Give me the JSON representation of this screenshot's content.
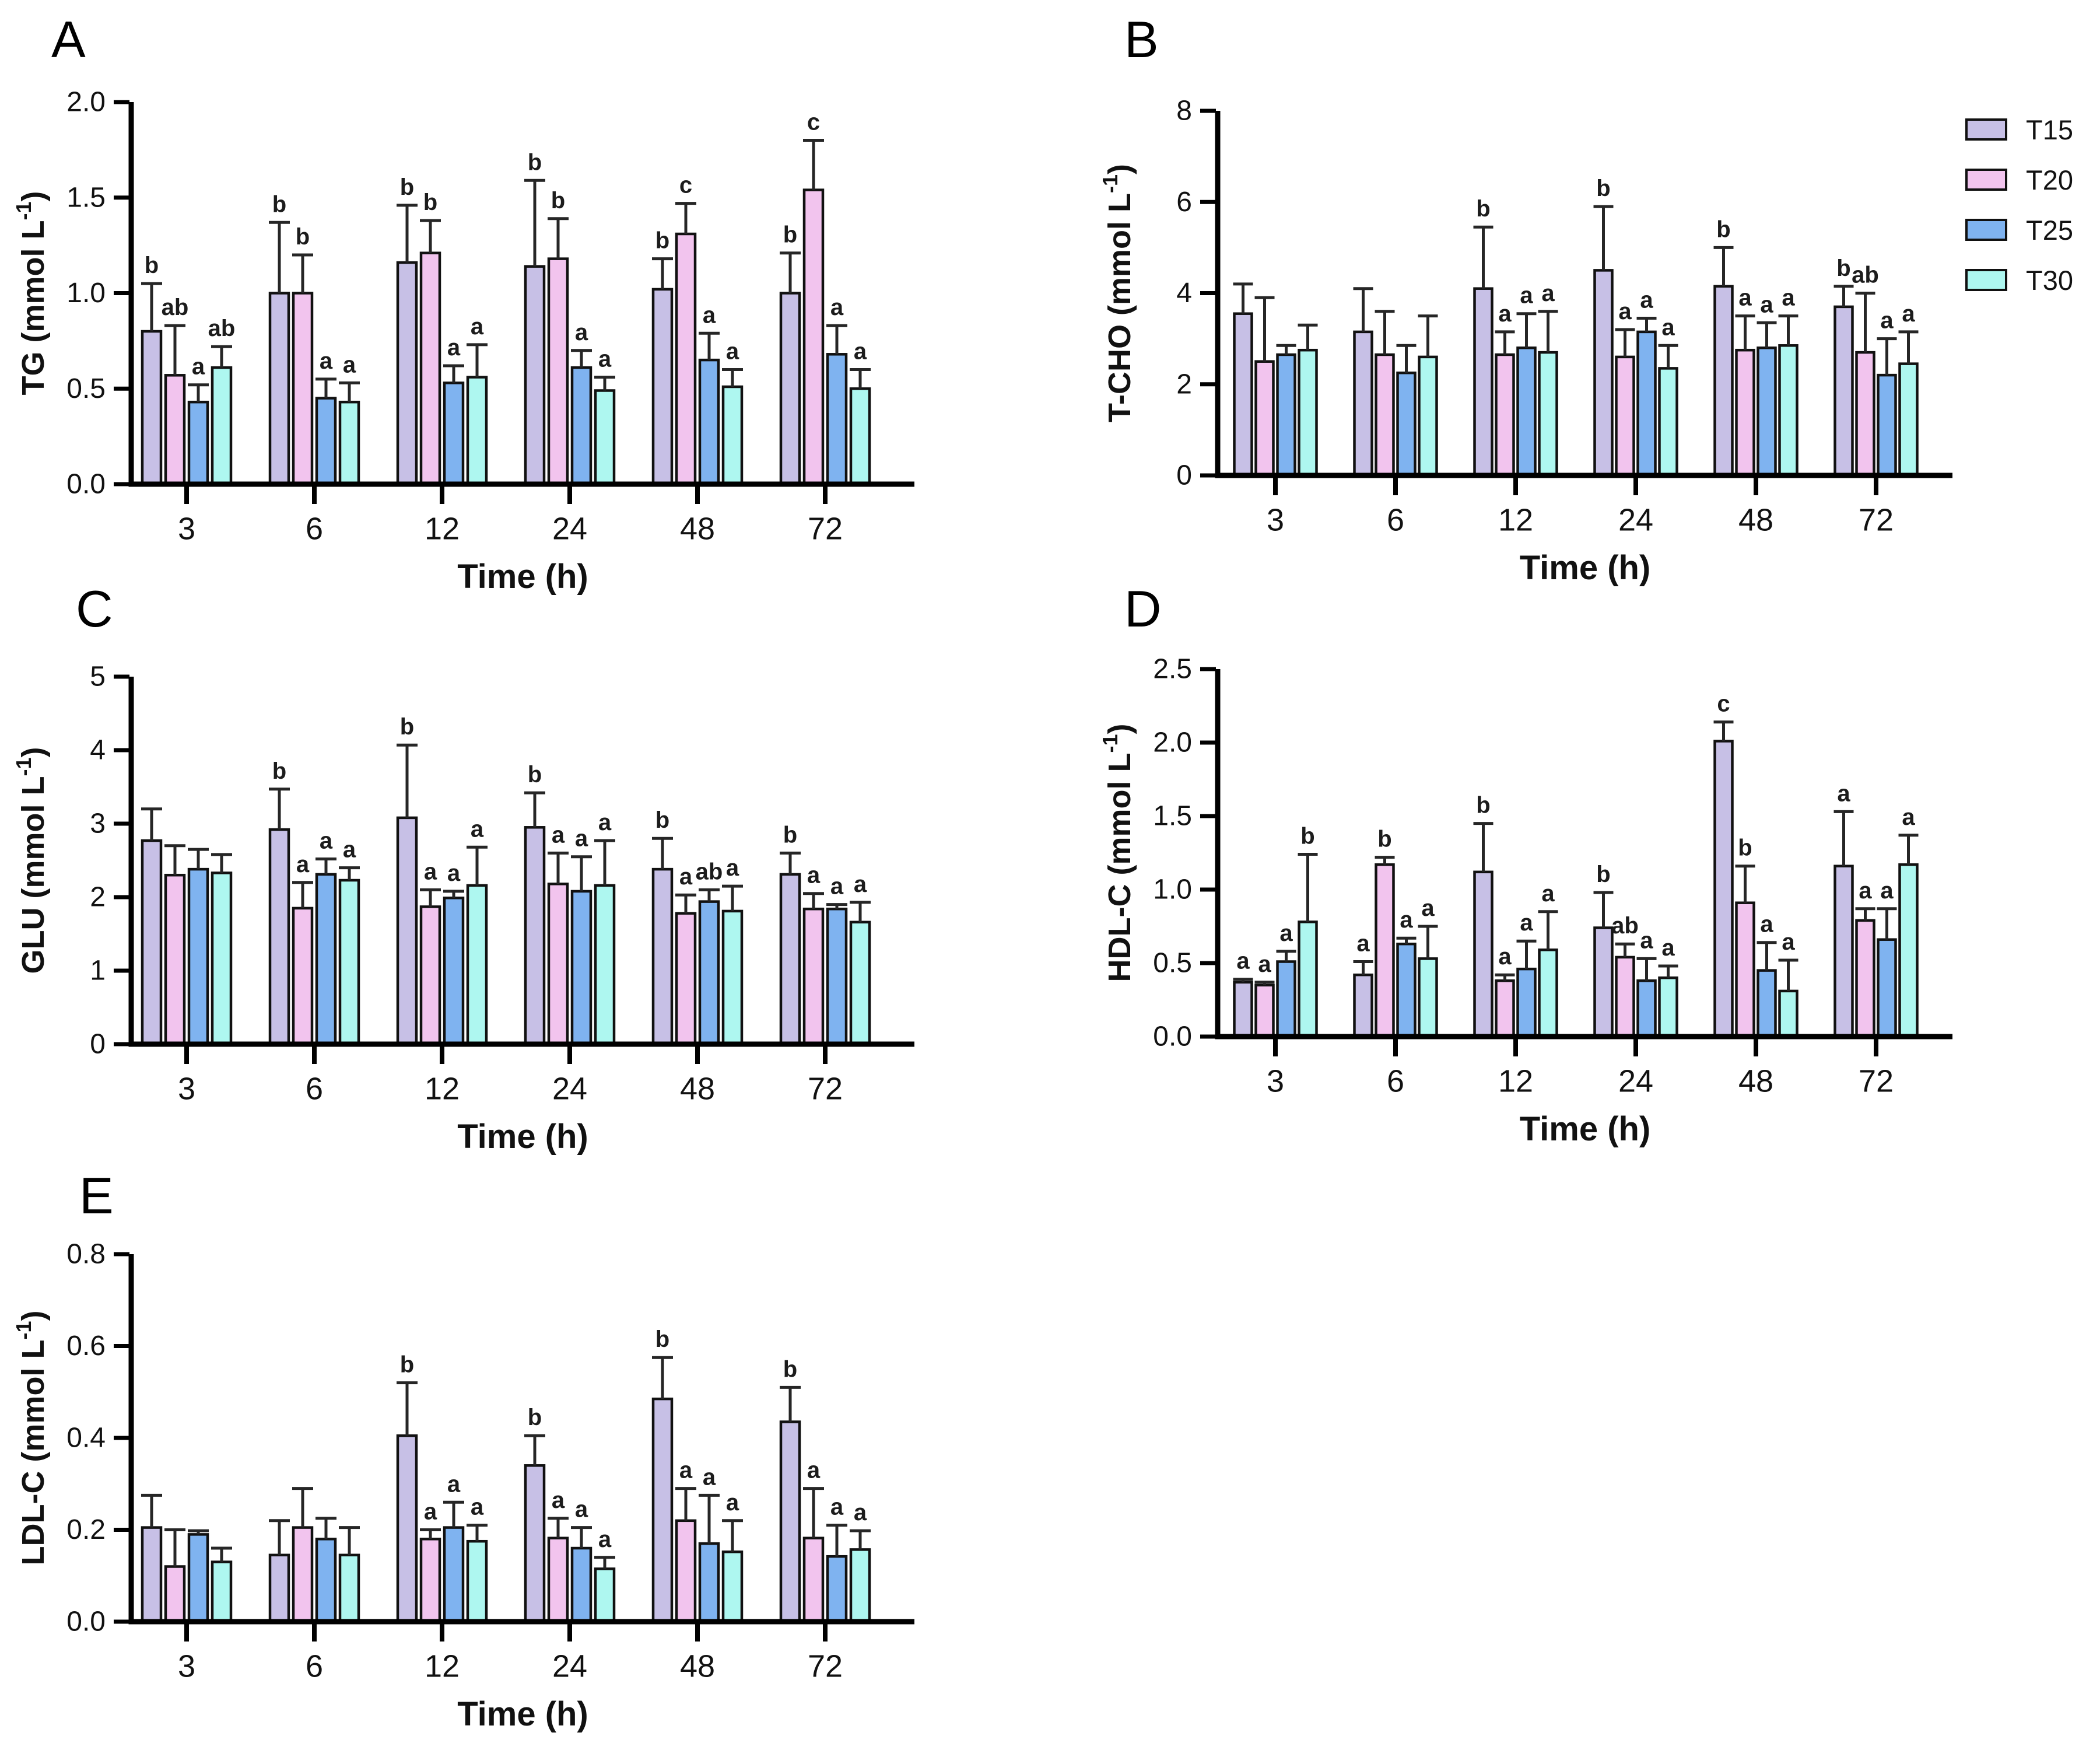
{
  "figure": {
    "background": "#ffffff",
    "xlabel": "Time (h)",
    "categories": [
      "3",
      "6",
      "12",
      "24",
      "48",
      "72"
    ],
    "legend": {
      "position": "top-right",
      "entries": [
        {
          "label": "T15",
          "color": "#c7c0e6"
        },
        {
          "label": "T20",
          "color": "#f2c4ee"
        },
        {
          "label": "T25",
          "color": "#7fb3f0"
        },
        {
          "label": "T30",
          "color": "#aef7f0"
        }
      ]
    },
    "colors": {
      "bar_outline": "#111111",
      "error_bar": "#262626",
      "axis": "#000000",
      "text": "#111111"
    }
  },
  "chart_data": [
    {
      "panel": "A",
      "type": "bar",
      "ylabel": "TG (mmol L⁻¹)",
      "ylabel_base": "TG (mmol L",
      "ylabel_sup": "-1",
      "ylabel_close": ")",
      "xlabel": "Time (h)",
      "ylim": [
        0,
        2.0
      ],
      "yticks": [
        "0.0",
        "0.5",
        "1.0",
        "1.5",
        "2.0"
      ],
      "ytick_values": [
        0,
        0.5,
        1.0,
        1.5,
        2.0
      ],
      "grid": false,
      "legend_position": "none",
      "categories": [
        "3",
        "6",
        "12",
        "24",
        "48",
        "72"
      ],
      "series": [
        {
          "name": "T15",
          "values": [
            0.8,
            1.0,
            1.16,
            1.14,
            1.02,
            1.0
          ],
          "errors": [
            0.25,
            0.37,
            0.3,
            0.45,
            0.16,
            0.21
          ],
          "letters": [
            "b",
            "b",
            "b",
            "b",
            "b",
            "b"
          ]
        },
        {
          "name": "T20",
          "values": [
            0.57,
            1.0,
            1.21,
            1.18,
            1.31,
            1.54
          ],
          "errors": [
            0.26,
            0.2,
            0.17,
            0.21,
            0.16,
            0.26
          ],
          "letters": [
            "ab",
            "b",
            "b",
            "b",
            "c",
            "c"
          ]
        },
        {
          "name": "T25",
          "values": [
            0.43,
            0.45,
            0.53,
            0.61,
            0.65,
            0.68
          ],
          "errors": [
            0.09,
            0.1,
            0.09,
            0.09,
            0.14,
            0.15
          ],
          "letters": [
            "a",
            "a",
            "a",
            "a",
            "a",
            "a"
          ]
        },
        {
          "name": "T30",
          "values": [
            0.61,
            0.43,
            0.56,
            0.49,
            0.51,
            0.5
          ],
          "errors": [
            0.11,
            0.1,
            0.17,
            0.07,
            0.09,
            0.1
          ],
          "letters": [
            "ab",
            "a",
            "a",
            "a",
            "a",
            "a"
          ]
        }
      ]
    },
    {
      "panel": "B",
      "type": "bar",
      "ylabel": "T-CHO (mmol L⁻¹)",
      "ylabel_base": "T-CHO (mmol L",
      "ylabel_sup": "-1",
      "ylabel_close": ")",
      "xlabel": "Time (h)",
      "ylim": [
        0,
        8
      ],
      "yticks": [
        "0",
        "2",
        "4",
        "6",
        "8"
      ],
      "ytick_values": [
        0,
        2,
        4,
        6,
        8
      ],
      "grid": false,
      "legend_position": "right",
      "categories": [
        "3",
        "6",
        "12",
        "24",
        "48",
        "72"
      ],
      "series": [
        {
          "name": "T15",
          "values": [
            3.55,
            3.15,
            4.1,
            4.5,
            4.15,
            3.7
          ],
          "errors": [
            0.65,
            0.95,
            1.35,
            1.4,
            0.85,
            0.45
          ],
          "letters": [
            "",
            "",
            "b",
            "b",
            "b",
            "b"
          ]
        },
        {
          "name": "T20",
          "values": [
            2.5,
            2.65,
            2.65,
            2.6,
            2.75,
            2.7
          ],
          "errors": [
            1.4,
            0.95,
            0.5,
            0.6,
            0.75,
            1.3
          ],
          "letters": [
            "",
            "",
            "a",
            "a",
            "a",
            "ab"
          ]
        },
        {
          "name": "T25",
          "values": [
            2.65,
            2.25,
            2.8,
            3.15,
            2.8,
            2.2
          ],
          "errors": [
            0.2,
            0.6,
            0.75,
            0.3,
            0.55,
            0.8
          ],
          "letters": [
            "",
            "",
            "a",
            "a",
            "a",
            "a"
          ]
        },
        {
          "name": "T30",
          "values": [
            2.75,
            2.6,
            2.7,
            2.35,
            2.85,
            2.45
          ],
          "errors": [
            0.55,
            0.9,
            0.9,
            0.5,
            0.65,
            0.7
          ],
          "letters": [
            "",
            "",
            "a",
            "a",
            "a",
            "a"
          ]
        }
      ]
    },
    {
      "panel": "C",
      "type": "bar",
      "ylabel": "GLU (mmol L⁻¹)",
      "ylabel_base": "GLU (mmol L",
      "ylabel_sup": "-1",
      "ylabel_close": ")",
      "xlabel": "Time (h)",
      "ylim": [
        0,
        5
      ],
      "yticks": [
        "0",
        "1",
        "2",
        "3",
        "4",
        "5"
      ],
      "ytick_values": [
        0,
        1,
        2,
        3,
        4,
        5
      ],
      "grid": false,
      "legend_position": "none",
      "categories": [
        "3",
        "6",
        "12",
        "24",
        "48",
        "72"
      ],
      "series": [
        {
          "name": "T15",
          "values": [
            2.77,
            2.92,
            3.08,
            2.95,
            2.38,
            2.31
          ],
          "errors": [
            0.43,
            0.55,
            0.99,
            0.47,
            0.42,
            0.29
          ],
          "letters": [
            "",
            "b",
            "b",
            "b",
            "b",
            "b"
          ]
        },
        {
          "name": "T20",
          "values": [
            2.3,
            1.85,
            1.87,
            2.18,
            1.78,
            1.84
          ],
          "errors": [
            0.4,
            0.35,
            0.23,
            0.42,
            0.25,
            0.21
          ],
          "letters": [
            "",
            "a",
            "a",
            "a",
            "a",
            "a"
          ]
        },
        {
          "name": "T25",
          "values": [
            2.38,
            2.31,
            1.99,
            2.08,
            1.94,
            1.84
          ],
          "errors": [
            0.27,
            0.21,
            0.09,
            0.47,
            0.16,
            0.06
          ],
          "letters": [
            "",
            "a",
            "a",
            "a",
            "ab",
            "a"
          ]
        },
        {
          "name": "T30",
          "values": [
            2.33,
            2.23,
            2.16,
            2.16,
            1.81,
            1.66
          ],
          "errors": [
            0.25,
            0.17,
            0.52,
            0.61,
            0.34,
            0.27
          ],
          "letters": [
            "",
            "a",
            "a",
            "a",
            "a",
            "a"
          ]
        }
      ]
    },
    {
      "panel": "D",
      "type": "bar",
      "ylabel": "HDL-C (mmol L⁻¹)",
      "ylabel_base": "HDL-C (mmol L",
      "ylabel_sup": "-1",
      "ylabel_close": ")",
      "xlabel": "Time (h)",
      "ylim": [
        0,
        2.5
      ],
      "yticks": [
        "0.0",
        "0.5",
        "1.0",
        "1.5",
        "2.0",
        "2.5"
      ],
      "ytick_values": [
        0,
        0.5,
        1.0,
        1.5,
        2.0,
        2.5
      ],
      "grid": false,
      "legend_position": "none",
      "categories": [
        "3",
        "6",
        "12",
        "24",
        "48",
        "72"
      ],
      "series": [
        {
          "name": "T15",
          "values": [
            0.37,
            0.42,
            1.12,
            0.74,
            2.01,
            1.16
          ],
          "errors": [
            0.02,
            0.09,
            0.33,
            0.24,
            0.13,
            0.37
          ],
          "letters": [
            "a",
            "a",
            "b",
            "b",
            "c",
            "a"
          ]
        },
        {
          "name": "T20",
          "values": [
            0.35,
            1.17,
            0.38,
            0.54,
            0.91,
            0.79
          ],
          "errors": [
            0.02,
            0.05,
            0.04,
            0.09,
            0.25,
            0.08
          ],
          "letters": [
            "a",
            "b",
            "a",
            "ab",
            "b",
            "a"
          ]
        },
        {
          "name": "T25",
          "values": [
            0.51,
            0.63,
            0.46,
            0.38,
            0.45,
            0.66
          ],
          "errors": [
            0.07,
            0.04,
            0.19,
            0.15,
            0.19,
            0.21
          ],
          "letters": [
            "a",
            "a",
            "a",
            "a",
            "a",
            "a"
          ]
        },
        {
          "name": "T30",
          "values": [
            0.78,
            0.53,
            0.59,
            0.4,
            0.31,
            1.17
          ],
          "errors": [
            0.46,
            0.22,
            0.26,
            0.08,
            0.21,
            0.2
          ],
          "letters": [
            "b",
            "a",
            "a",
            "a",
            "a",
            "a"
          ]
        }
      ]
    },
    {
      "panel": "E",
      "type": "bar",
      "ylabel": "LDL-C (mmol L⁻¹)",
      "ylabel_base": "LDL-C (mmol L",
      "ylabel_sup": "-1",
      "ylabel_close": ")",
      "xlabel": "Time (h)",
      "ylim": [
        0,
        0.8
      ],
      "yticks": [
        "0.0",
        "0.2",
        "0.4",
        "0.6",
        "0.8"
      ],
      "ytick_values": [
        0,
        0.2,
        0.4,
        0.6,
        0.8
      ],
      "grid": false,
      "legend_position": "none",
      "categories": [
        "3",
        "6",
        "12",
        "24",
        "48",
        "72"
      ],
      "series": [
        {
          "name": "T15",
          "values": [
            0.205,
            0.145,
            0.405,
            0.34,
            0.485,
            0.435
          ],
          "errors": [
            0.07,
            0.075,
            0.115,
            0.065,
            0.09,
            0.075
          ],
          "letters": [
            "",
            "",
            "b",
            "b",
            "b",
            "b"
          ]
        },
        {
          "name": "T20",
          "values": [
            0.12,
            0.205,
            0.18,
            0.182,
            0.22,
            0.182
          ],
          "errors": [
            0.08,
            0.085,
            0.02,
            0.043,
            0.07,
            0.108
          ],
          "letters": [
            "",
            "",
            "a",
            "a",
            "a",
            "a"
          ]
        },
        {
          "name": "T25",
          "values": [
            0.19,
            0.18,
            0.205,
            0.16,
            0.17,
            0.142
          ],
          "errors": [
            0.008,
            0.045,
            0.055,
            0.045,
            0.105,
            0.068
          ],
          "letters": [
            "",
            "",
            "a",
            "a",
            "a",
            "a"
          ]
        },
        {
          "name": "T30",
          "values": [
            0.13,
            0.145,
            0.175,
            0.115,
            0.152,
            0.157
          ],
          "errors": [
            0.03,
            0.06,
            0.035,
            0.025,
            0.068,
            0.041
          ],
          "letters": [
            "",
            "",
            "a",
            "a",
            "a",
            "a"
          ]
        }
      ]
    }
  ]
}
